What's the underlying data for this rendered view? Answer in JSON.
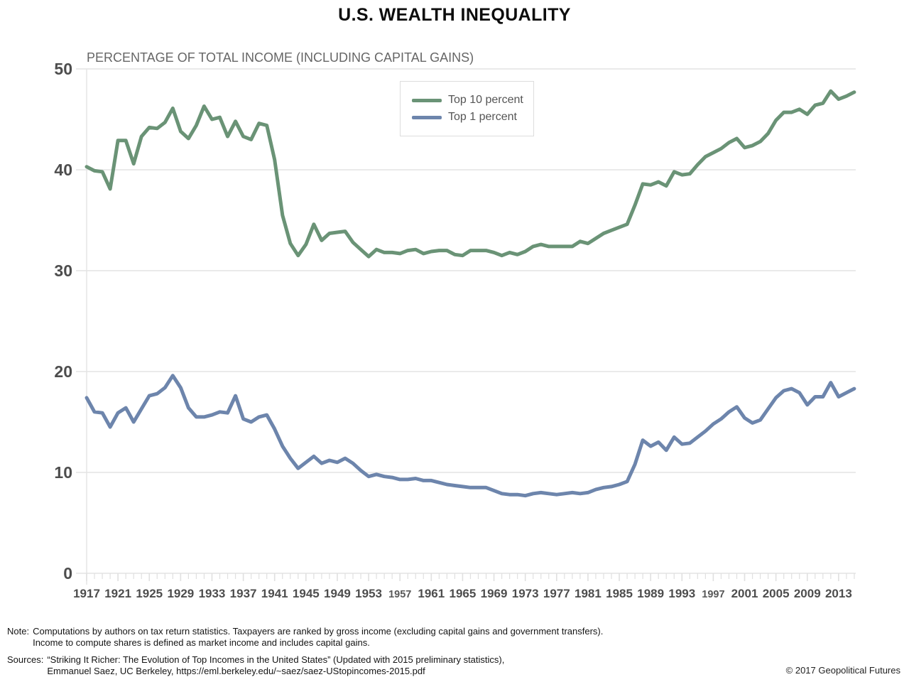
{
  "chart_data": {
    "type": "line",
    "title": "U.S. WEALTH INEQUALITY",
    "subtitle": "PERCENTAGE OF TOTAL INCOME (INCLUDING CAPITAL GAINS)",
    "x_start": 1917,
    "x_end": 2015,
    "x_tick_interval": 4,
    "small_x_labels": [
      1957,
      1997
    ],
    "y_ticks": [
      0,
      10,
      20,
      30,
      40,
      50
    ],
    "ylim": [
      0,
      50
    ],
    "grid": "horizontal-only",
    "legend_position": "top-center",
    "colors": {
      "grid": "#e3e3e3",
      "tick": "#e0e0e0",
      "axis_label": "#4d4d4d",
      "small_label": "#585858"
    },
    "layout": {
      "x0": 122,
      "x_step": 11.03,
      "y_zero": 807,
      "y_scale": 14.2,
      "grid_x1": 107,
      "grid_x2": 1205,
      "ylabel_x": 102,
      "x_label_y": 841,
      "tick_len_major": 11,
      "tick_len_minor": 8,
      "line_width": 5
    },
    "series": [
      {
        "id": "top-10-percent",
        "name": "Top 10 percent",
        "color": "#6A9376",
        "values": [
          40.3,
          39.9,
          39.8,
          38.1,
          42.9,
          42.9,
          40.6,
          43.3,
          44.2,
          44.1,
          44.7,
          46.1,
          43.8,
          43.1,
          44.4,
          46.3,
          45.0,
          45.2,
          43.3,
          44.8,
          43.3,
          43.0,
          44.6,
          44.4,
          41.0,
          35.5,
          32.7,
          31.5,
          32.6,
          34.6,
          33.0,
          33.7,
          33.8,
          33.9,
          32.8,
          32.1,
          31.4,
          32.1,
          31.8,
          31.8,
          31.7,
          32.0,
          32.1,
          31.7,
          31.9,
          32.0,
          32.0,
          31.6,
          31.5,
          32.0,
          32.0,
          32.0,
          31.8,
          31.5,
          31.8,
          31.6,
          31.9,
          32.4,
          32.6,
          32.4,
          32.4,
          32.4,
          32.4,
          32.9,
          32.7,
          33.2,
          33.7,
          34.0,
          34.3,
          34.6,
          36.5,
          38.6,
          38.5,
          38.8,
          38.4,
          39.8,
          39.5,
          39.6,
          40.5,
          41.3,
          41.7,
          42.1,
          42.7,
          43.1,
          42.2,
          42.4,
          42.8,
          43.6,
          44.9,
          45.7,
          45.7,
          46.0,
          45.5,
          46.4,
          46.6,
          47.8,
          47.0,
          47.3,
          47.7
        ]
      },
      {
        "id": "top-1-percent",
        "name": "Top 1 percent",
        "color": "#6D85AC",
        "values": [
          17.4,
          16.0,
          15.9,
          14.5,
          15.9,
          16.4,
          15.0,
          16.3,
          17.6,
          17.8,
          18.4,
          19.6,
          18.4,
          16.4,
          15.5,
          15.5,
          15.7,
          16.0,
          15.9,
          17.6,
          15.3,
          15.0,
          15.5,
          15.7,
          14.3,
          12.6,
          11.4,
          10.4,
          11.0,
          11.6,
          10.9,
          11.2,
          11.0,
          11.4,
          10.9,
          10.2,
          9.6,
          9.8,
          9.6,
          9.5,
          9.3,
          9.3,
          9.4,
          9.2,
          9.2,
          9.0,
          8.8,
          8.7,
          8.6,
          8.5,
          8.5,
          8.5,
          8.2,
          7.9,
          7.8,
          7.8,
          7.7,
          7.9,
          8.0,
          7.9,
          7.8,
          7.9,
          8.0,
          7.9,
          8.0,
          8.3,
          8.5,
          8.6,
          8.8,
          9.1,
          10.8,
          13.2,
          12.6,
          13.0,
          12.2,
          13.5,
          12.8,
          12.9,
          13.5,
          14.1,
          14.8,
          15.3,
          16.0,
          16.5,
          15.4,
          14.9,
          15.2,
          16.3,
          17.4,
          18.1,
          18.3,
          17.9,
          16.7,
          17.5,
          17.5,
          18.9,
          17.5,
          17.9,
          18.3
        ]
      }
    ]
  },
  "footnotes": {
    "note_label": "Note:",
    "note_line1": "Computations by authors on tax return statistics. Taxpayers are ranked by gross income (excluding capital gains and government transfers).",
    "note_line2": "Income to compute shares is defined as market income and includes capital gains.",
    "sources_label": "Sources:",
    "sources_line1": "“Striking It Richer: The Evolution of Top Incomes in the United States” (Updated with 2015 preliminary statistics),",
    "sources_line2": "Emmanuel Saez, UC Berkeley, https://eml.berkeley.edu/~saez/saez-UStopincomes-2015.pdf",
    "copyright": "© 2017 Geopolitical Futures"
  }
}
